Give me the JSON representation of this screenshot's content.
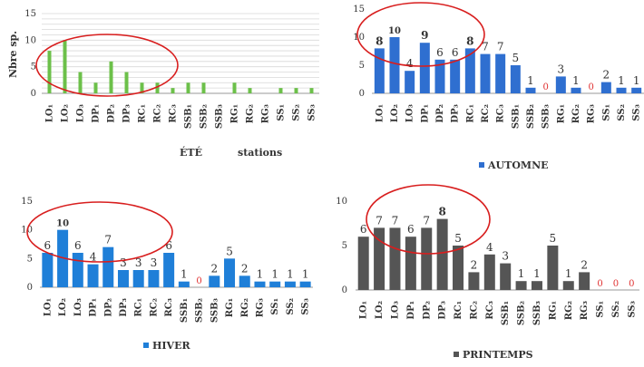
{
  "chart_data": [
    {
      "type": "bar",
      "panel": "summer",
      "title": "",
      "xlabel": "stations",
      "ylabel": "Nbre sp.",
      "legend": "ÉTÉ",
      "ylim": [
        0,
        15
      ],
      "yticks": [
        0,
        5,
        10,
        15
      ],
      "grid": true,
      "color": "#6cc04a",
      "categories": [
        "LO₁",
        "LO₂",
        "LO₃",
        "DP₁",
        "DP₂",
        "DP₃",
        "RC₁",
        "RC₂",
        "RC₃",
        "SSB₁",
        "SSB₂",
        "SSB₃",
        "RG₁",
        "RG₂",
        "RG₃",
        "SS₁",
        "SS₂",
        "SS₃"
      ],
      "values": [
        8,
        10,
        4,
        2,
        6,
        4,
        2,
        2,
        1,
        2,
        2,
        0,
        2,
        1,
        0,
        1,
        1,
        1
      ],
      "data_labels": []
    },
    {
      "type": "bar",
      "panel": "autumn",
      "title": "",
      "xlabel": "",
      "ylabel": "",
      "legend": "AUTOMNE",
      "ylim": [
        0,
        15
      ],
      "yticks": [
        0,
        5,
        10,
        15
      ],
      "grid": false,
      "color": "#2f6fd0",
      "categories": [
        "LO₁",
        "LO₂",
        "LO₃",
        "DP₁",
        "DP₂",
        "DP₃",
        "RC₁",
        "RC₂",
        "RC₃",
        "SSB₁",
        "SSB₂",
        "SSB₃",
        "RG₁",
        "RG₂",
        "RG₃",
        "SS₁",
        "SS₂",
        "SS₃"
      ],
      "values": [
        8,
        10,
        4,
        9,
        6,
        6,
        8,
        7,
        7,
        5,
        1,
        0,
        3,
        1,
        0,
        2,
        1,
        1
      ],
      "data_labels": [
        "8",
        "10",
        "4",
        "9",
        "6",
        "6",
        "8",
        "7",
        "7",
        "5",
        "1",
        "0",
        "3",
        "1",
        "0",
        "2",
        "1",
        "1"
      ]
    },
    {
      "type": "bar",
      "panel": "winter",
      "title": "",
      "xlabel": "",
      "ylabel": "",
      "legend": "HIVER",
      "ylim": [
        0,
        15
      ],
      "yticks": [
        0,
        5,
        10,
        15
      ],
      "grid": false,
      "color": "#1f7fd8",
      "categories": [
        "LO₁",
        "LO₂",
        "LO₃",
        "DP₁",
        "DP₂",
        "DP₃",
        "RC₁",
        "RC₂",
        "RC₃",
        "SSB₁",
        "SSB₂",
        "SSB₃",
        "RG₁",
        "RG₂",
        "RG₃",
        "SS₁",
        "SS₂",
        "SS₃"
      ],
      "values": [
        6,
        10,
        6,
        4,
        7,
        3,
        3,
        3,
        6,
        1,
        0,
        2,
        5,
        2,
        1,
        1,
        1,
        1
      ],
      "data_labels": [
        "6",
        "10",
        "6",
        "4",
        "7",
        "3",
        "3",
        "3",
        "6",
        "1",
        "0",
        "2",
        "5",
        "2",
        "1",
        "1",
        "1",
        "1"
      ]
    },
    {
      "type": "bar",
      "panel": "spring",
      "title": "",
      "xlabel": "",
      "ylabel": "",
      "legend": "PRINTEMPS",
      "ylim": [
        0,
        10
      ],
      "yticks": [
        0,
        5,
        10
      ],
      "grid": false,
      "color": "#555555",
      "categories": [
        "LO₁",
        "LO₂",
        "LO₃",
        "DP₁",
        "DP₂",
        "DP₃",
        "RC₁",
        "RC₂",
        "RC₃",
        "SSB₁",
        "SSB₂",
        "SSB₃",
        "RG₁",
        "RG₂",
        "RG₃",
        "SS₁",
        "SS₂",
        "SS₃"
      ],
      "values": [
        6,
        7,
        7,
        6,
        7,
        8,
        5,
        2,
        4,
        3,
        1,
        1,
        5,
        1,
        2,
        0,
        0,
        0
      ],
      "data_labels": [
        "6",
        "7",
        "7",
        "6",
        "7",
        "8",
        "5",
        "2",
        "4",
        "3",
        "1",
        "1",
        "5",
        "1",
        "2",
        "0",
        "0",
        "0"
      ]
    }
  ],
  "colors": {
    "zero_label": "#e03030",
    "highlight_ellipse": "#d81e1e",
    "axis": "#9a9a9a",
    "grid": "#d8d8d8",
    "label_text": "#333333"
  }
}
